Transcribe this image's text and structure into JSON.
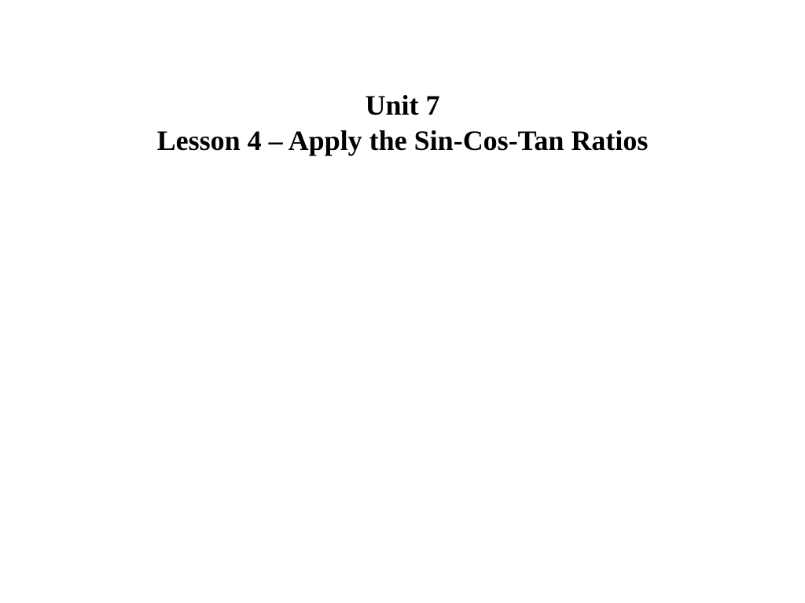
{
  "slide": {
    "title_line1": "Unit 7",
    "title_line2": "Lesson 4 – Apply the Sin-Cos-Tan Ratios",
    "background_color": "#ffffff",
    "text_color": "#000000",
    "font_family": "Times New Roman",
    "title_fontsize": 36,
    "title_fontweight": "bold"
  }
}
